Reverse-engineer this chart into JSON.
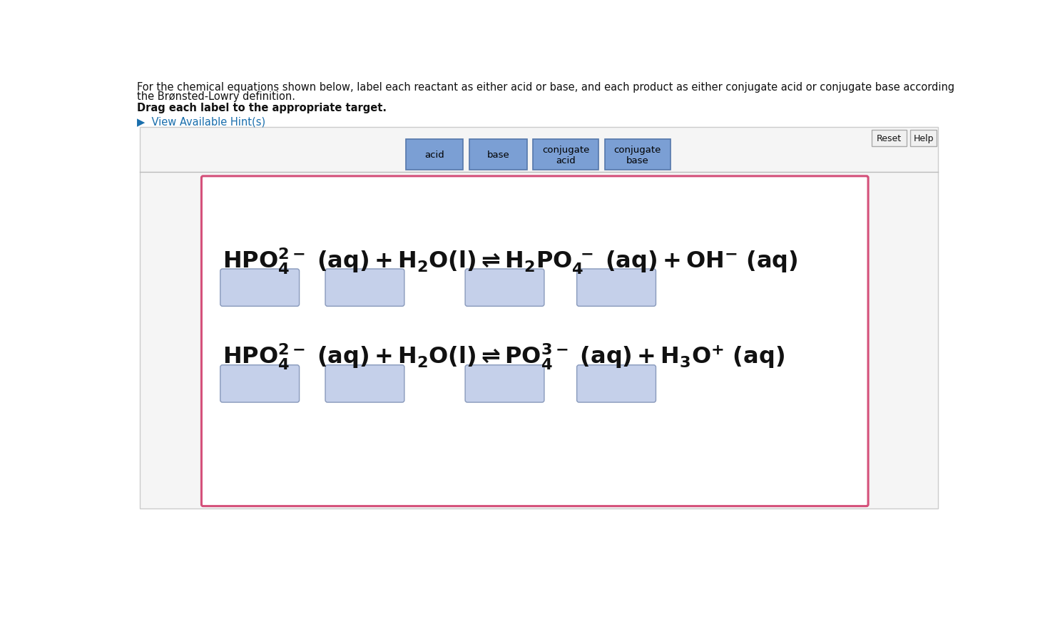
{
  "bg_color": "#ffffff",
  "outer_bg": "#f5f5f5",
  "header_text_line1": "For the chemical equations shown below, label each reactant as either acid or base, and each product as either conjugate acid or conjugate base according",
  "header_text_line2": "the Brønsted-Lowry definition.",
  "bold_text": "Drag each label to the appropriate target.",
  "hint_text": "View Available Hint(s)",
  "label_buttons": [
    "acid",
    "base",
    "conjugate\nacid",
    "conjugate\nbase"
  ],
  "label_button_color": "#7b9fd4",
  "label_button_text_color": "#000000",
  "eq_border_color": "#d4507a",
  "box_fill_color": "#c5d0ea",
  "box_border_color": "#8899bb",
  "reset_button_text": "Reset",
  "help_button_text": "Help",
  "button_border_color": "#aaaaaa",
  "button_bg_color": "#f0f0f0",
  "outer_border_color": "#cccccc",
  "inner_border_color": "#bbbbbb"
}
